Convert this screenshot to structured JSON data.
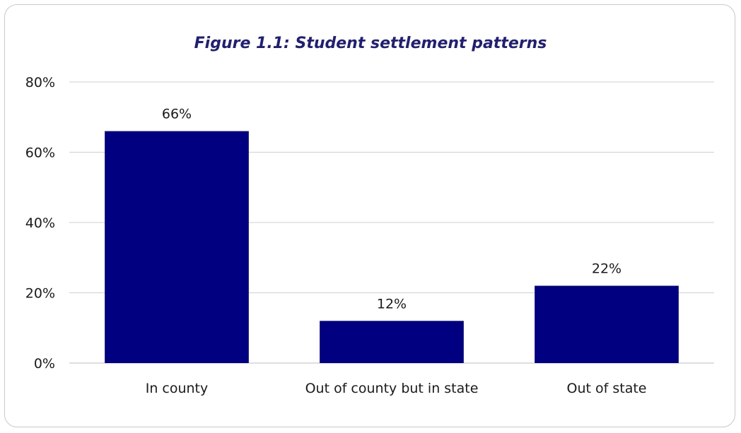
{
  "chart_data": {
    "type": "bar",
    "title": "Figure 1.1: Student settlement patterns",
    "categories": [
      "In county",
      "Out of county but in state",
      "Out of state"
    ],
    "values": [
      66,
      12,
      22
    ],
    "data_labels": [
      "66%",
      "12%",
      "22%"
    ],
    "yticks": [
      0,
      20,
      40,
      60,
      80
    ],
    "ytick_labels": [
      "0%",
      "20%",
      "40%",
      "60%",
      "80%"
    ],
    "ylim": [
      0,
      80
    ],
    "xlabel": "",
    "ylabel": "",
    "grid": true,
    "legend": "none",
    "bar_color": "#000080"
  }
}
